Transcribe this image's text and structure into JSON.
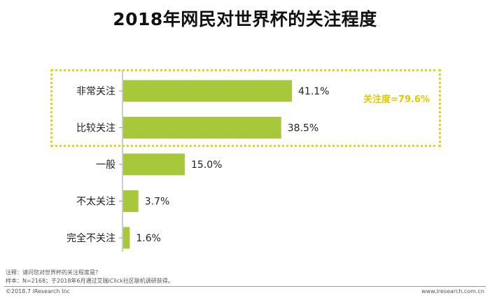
{
  "chart_data": {
    "type": "bar",
    "orientation": "horizontal",
    "title": "2018年网民对世界杯的关注程度",
    "categories": [
      "非常关注",
      "比较关注",
      "一般",
      "不太关注",
      "完全不关注"
    ],
    "values": [
      41.1,
      38.5,
      15.0,
      3.7,
      1.6
    ],
    "value_labels": [
      "41.1%",
      "38.5%",
      "15.0%",
      "3.7%",
      "1.6%"
    ],
    "xlim": [
      0,
      45
    ],
    "grid": false,
    "bar_color": "#a7c83a",
    "axis_color": "#999999",
    "annotation": {
      "text": "关注度=79.6%",
      "covers_categories": [
        "非常关注",
        "比较关注"
      ],
      "box_color": "#e8d21a",
      "text_color": "#e3c800"
    }
  },
  "notes": {
    "line1": "注释：请问您对世界杯的关注程度是？",
    "line2": "样本：N=2168；于2018年6月通过艾瑞iClick社区联机调研获得。"
  },
  "footer": {
    "copyright": "©2018.7 iResearch Inc",
    "website": "www.iresearch.com.cn"
  }
}
